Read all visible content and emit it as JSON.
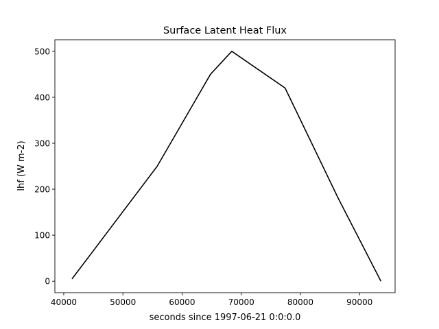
{
  "chart_data": {
    "type": "line",
    "title": "Surface Latent Heat Flux",
    "xlabel": "seconds since 1997-06-21 0:0:0.0",
    "ylabel": "lhf (W m-2)",
    "xlim": [
      38500,
      96000
    ],
    "ylim": [
      -25,
      525
    ],
    "xticks": [
      40000,
      50000,
      60000,
      70000,
      80000,
      90000
    ],
    "yticks": [
      0,
      100,
      200,
      300,
      400,
      500
    ],
    "grid": false,
    "series": [
      {
        "color": "#000000",
        "x": [
          41400,
          55800,
          64800,
          68400,
          77400,
          86400,
          93600
        ],
        "y": [
          5,
          250,
          450,
          500,
          420,
          180,
          0
        ]
      }
    ]
  }
}
